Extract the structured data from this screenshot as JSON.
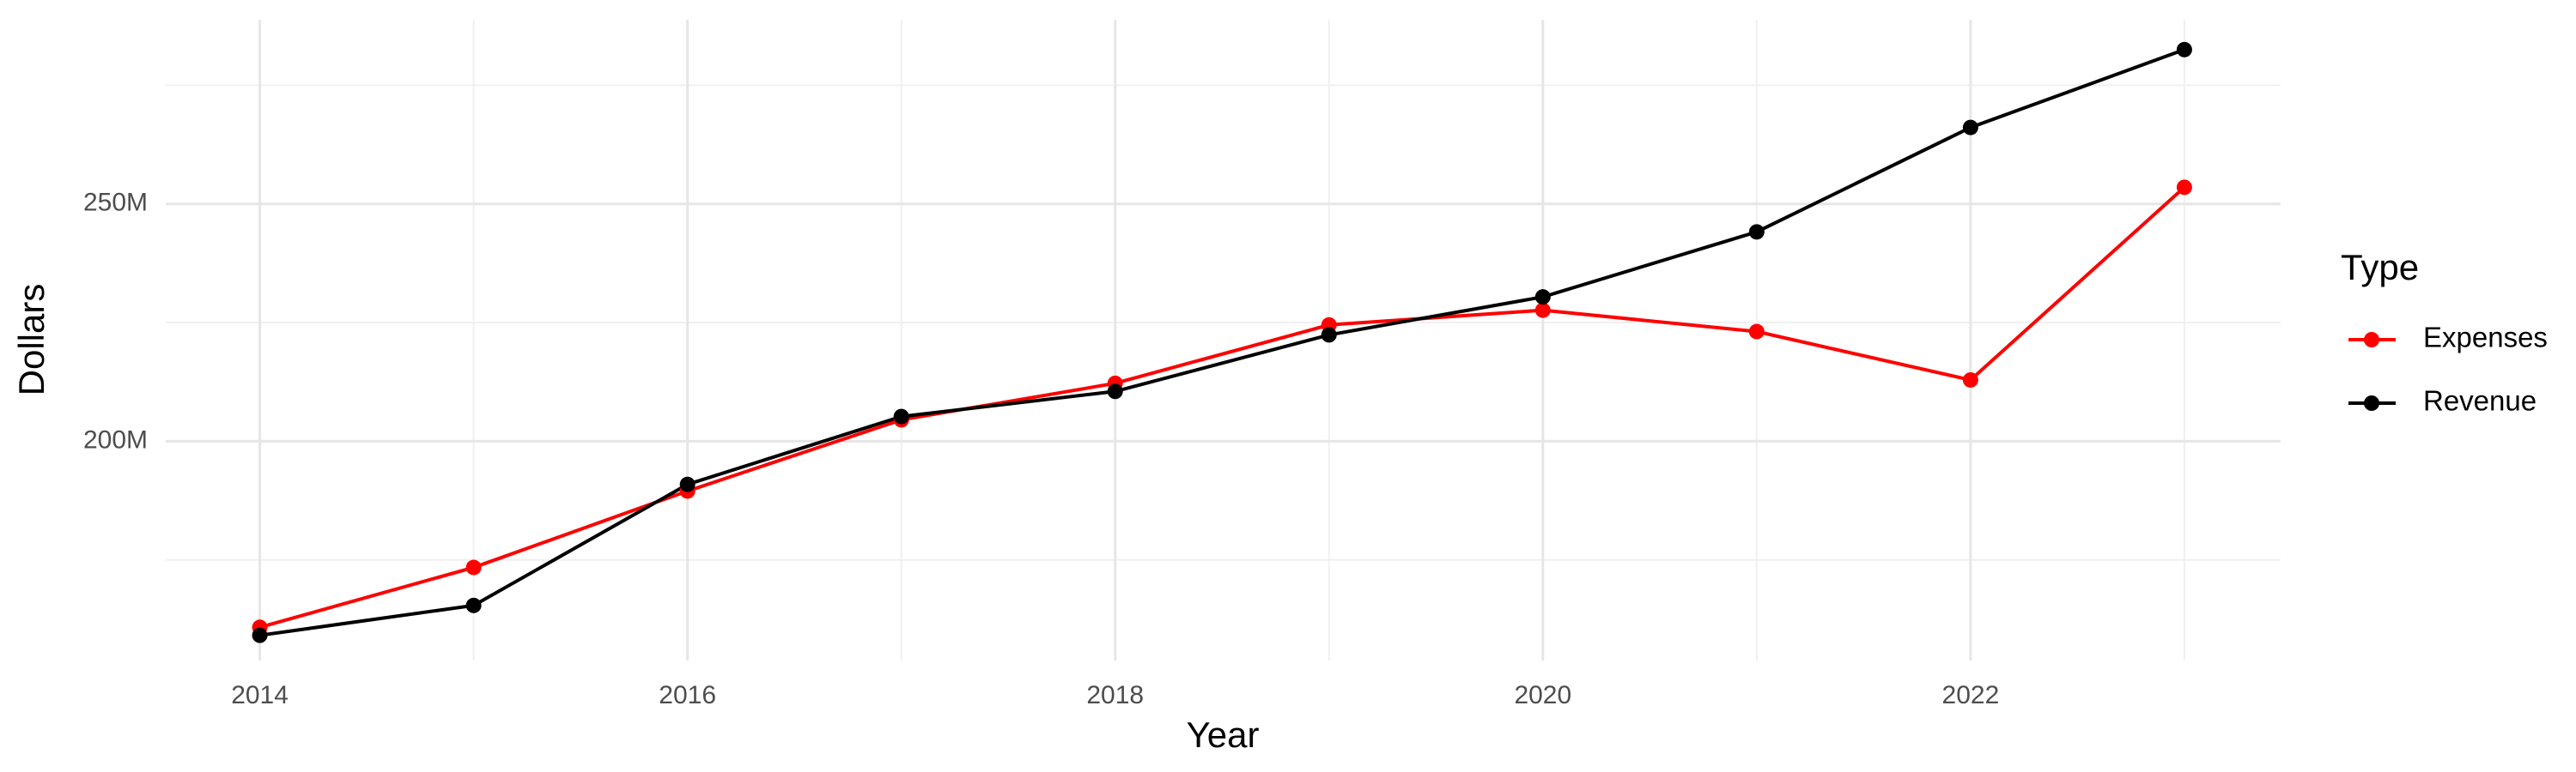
{
  "chart_data": {
    "type": "line",
    "x_label": "Year",
    "y_label": "Dollars",
    "legend_title": "Type",
    "x": [
      2014,
      2015,
      2016,
      2017,
      2018,
      2019,
      2020,
      2021,
      2022,
      2023
    ],
    "series": [
      {
        "name": "Expenses",
        "color": "#ff0000",
        "values": [
          160800000,
          173400000,
          189500000,
          204500000,
          212200000,
          224500000,
          227600000,
          223100000,
          212900000,
          253500000
        ]
      },
      {
        "name": "Revenue",
        "color": "#000000",
        "values": [
          159100000,
          165400000,
          190900000,
          205200000,
          210500000,
          222400000,
          230400000,
          244100000,
          266100000,
          282500000
        ]
      }
    ],
    "xlim": [
      2013.56,
      2023.45
    ],
    "xticks": [
      2014,
      2016,
      2018,
      2020,
      2022
    ],
    "ylim": [
      153800000,
      288800000
    ],
    "yticks": [
      {
        "value": 200000000,
        "label": "200M"
      },
      {
        "value": 250000000,
        "label": "250M"
      }
    ],
    "grid": true,
    "legend": "right"
  }
}
